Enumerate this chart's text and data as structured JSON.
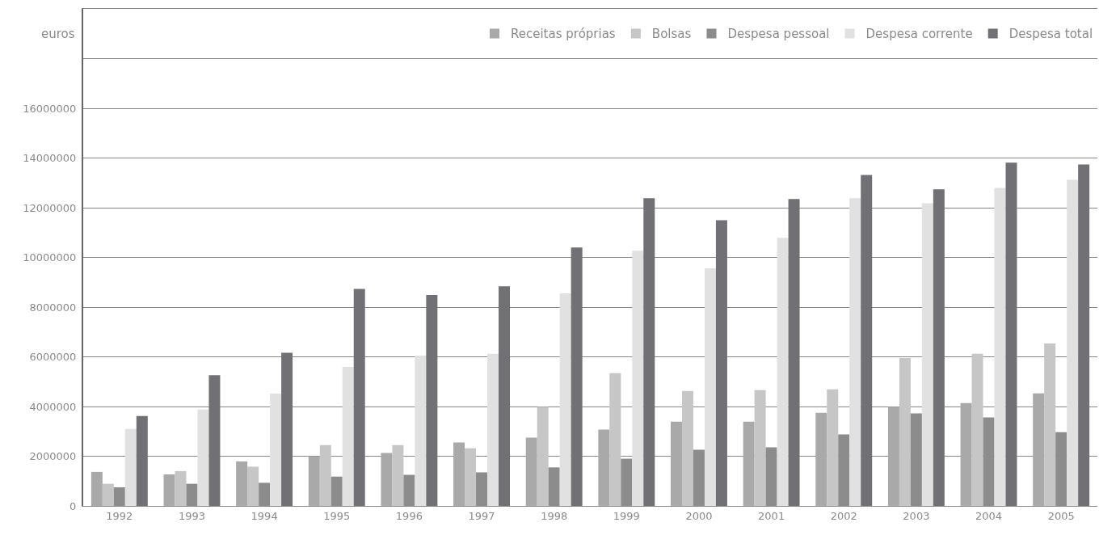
{
  "chart_data": {
    "type": "bar",
    "ylabel": "euros",
    "categories": [
      "1992",
      "1993",
      "1994",
      "1995",
      "1996",
      "1997",
      "1998",
      "1999",
      "2000",
      "2001",
      "2002",
      "2003",
      "2004",
      "2005"
    ],
    "series": [
      {
        "name": "Receitas próprias",
        "color": "#a9a9aa",
        "values": [
          1370000,
          1270000,
          1790000,
          2000000,
          2130000,
          2550000,
          2750000,
          3070000,
          3390000,
          3390000,
          3750000,
          3980000,
          4140000,
          4530000
        ]
      },
      {
        "name": "Bolsas",
        "color": "#c6c6c6",
        "values": [
          890000,
          1400000,
          1580000,
          2450000,
          2450000,
          2320000,
          3980000,
          5340000,
          4630000,
          4660000,
          4690000,
          5950000,
          6120000,
          6540000
        ]
      },
      {
        "name": "Despesa pessoal",
        "color": "#8c8c8d",
        "values": [
          750000,
          890000,
          930000,
          1180000,
          1250000,
          1350000,
          1550000,
          1900000,
          2260000,
          2360000,
          2880000,
          3720000,
          3560000,
          2970000
        ]
      },
      {
        "name": "Despesa corrente",
        "color": "#e1e1e1",
        "values": [
          3100000,
          3880000,
          4520000,
          5590000,
          6050000,
          6120000,
          8550000,
          10270000,
          9560000,
          10790000,
          12380000,
          12180000,
          12800000,
          13120000
        ]
      },
      {
        "name": "Despesa total",
        "color": "#717075",
        "values": [
          3620000,
          5260000,
          6160000,
          8730000,
          8490000,
          8840000,
          10400000,
          12380000,
          11500000,
          12350000,
          13320000,
          12740000,
          13810000,
          13740000
        ]
      }
    ],
    "ylim": [
      0,
      20000000
    ],
    "yticks": [
      0,
      2000000,
      4000000,
      6000000,
      8000000,
      10000000,
      12000000,
      14000000,
      16000000,
      {
        "value": 18000000,
        "label": null
      },
      {
        "value": 20000000,
        "label": null
      }
    ],
    "grid": "y",
    "legend": "top right"
  }
}
